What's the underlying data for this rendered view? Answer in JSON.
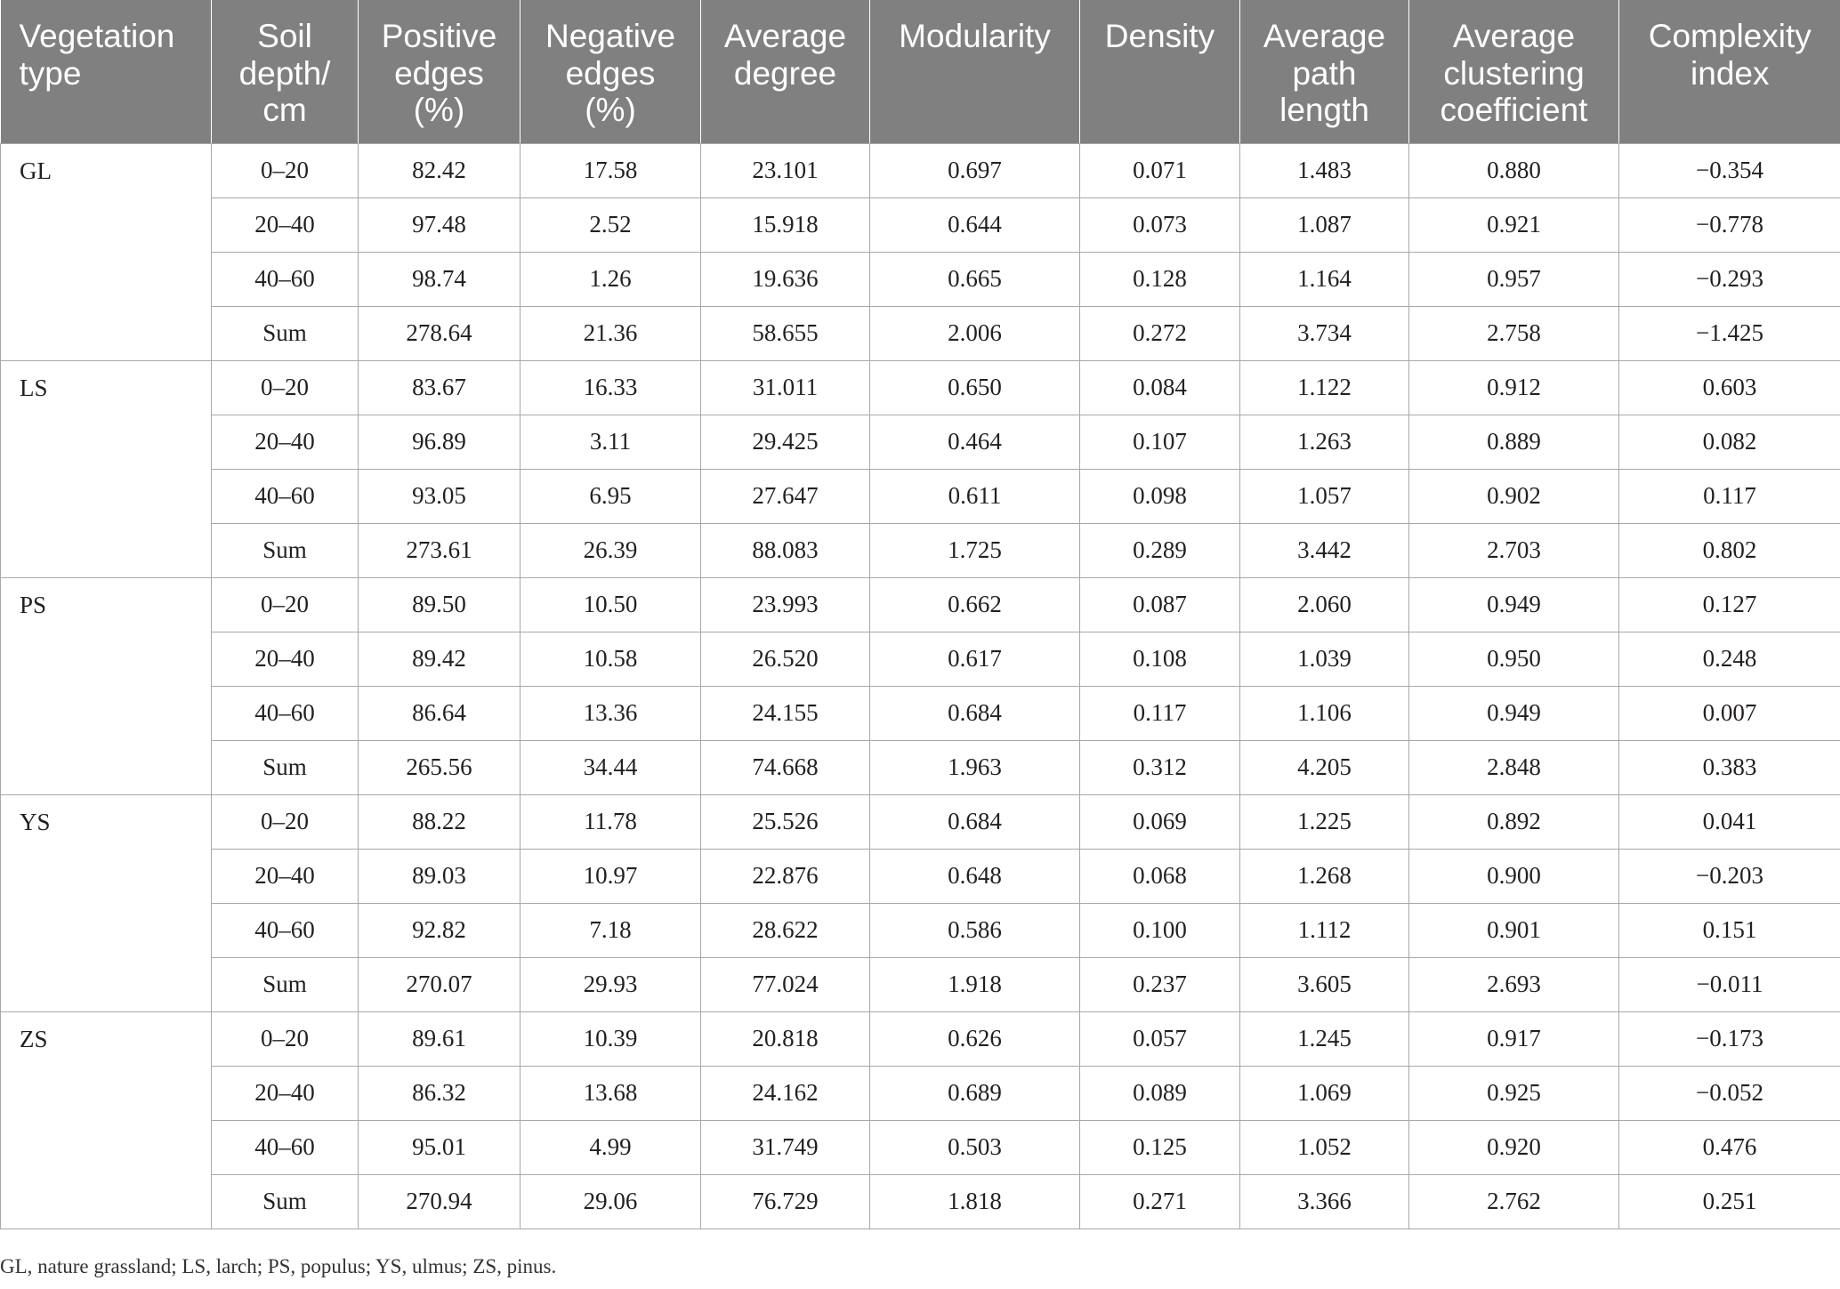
{
  "table": {
    "headers": [
      "Vegetation\ntype",
      "Soil\ndepth/\ncm",
      "Positive\nedges\n(%)",
      "Negative\nedges\n(%)",
      "Average\ndegree",
      "Modularity",
      "Density",
      "Average\npath\nlength",
      "Average\nclustering\ncoefficient",
      "Complexity\nindex"
    ],
    "groups": [
      {
        "type": "GL",
        "rows": [
          [
            "0–20",
            "82.42",
            "17.58",
            "23.101",
            "0.697",
            "0.071",
            "1.483",
            "0.880",
            "−0.354"
          ],
          [
            "20–40",
            "97.48",
            "2.52",
            "15.918",
            "0.644",
            "0.073",
            "1.087",
            "0.921",
            "−0.778"
          ],
          [
            "40–60",
            "98.74",
            "1.26",
            "19.636",
            "0.665",
            "0.128",
            "1.164",
            "0.957",
            "−0.293"
          ],
          [
            "Sum",
            "278.64",
            "21.36",
            "58.655",
            "2.006",
            "0.272",
            "3.734",
            "2.758",
            "−1.425"
          ]
        ]
      },
      {
        "type": "LS",
        "rows": [
          [
            "0–20",
            "83.67",
            "16.33",
            "31.011",
            "0.650",
            "0.084",
            "1.122",
            "0.912",
            "0.603"
          ],
          [
            "20–40",
            "96.89",
            "3.11",
            "29.425",
            "0.464",
            "0.107",
            "1.263",
            "0.889",
            "0.082"
          ],
          [
            "40–60",
            "93.05",
            "6.95",
            "27.647",
            "0.611",
            "0.098",
            "1.057",
            "0.902",
            "0.117"
          ],
          [
            "Sum",
            "273.61",
            "26.39",
            "88.083",
            "1.725",
            "0.289",
            "3.442",
            "2.703",
            "0.802"
          ]
        ]
      },
      {
        "type": "PS",
        "rows": [
          [
            "0–20",
            "89.50",
            "10.50",
            "23.993",
            "0.662",
            "0.087",
            "2.060",
            "0.949",
            "0.127"
          ],
          [
            "20–40",
            "89.42",
            "10.58",
            "26.520",
            "0.617",
            "0.108",
            "1.039",
            "0.950",
            "0.248"
          ],
          [
            "40–60",
            "86.64",
            "13.36",
            "24.155",
            "0.684",
            "0.117",
            "1.106",
            "0.949",
            "0.007"
          ],
          [
            "Sum",
            "265.56",
            "34.44",
            "74.668",
            "1.963",
            "0.312",
            "4.205",
            "2.848",
            "0.383"
          ]
        ]
      },
      {
        "type": "YS",
        "rows": [
          [
            "0–20",
            "88.22",
            "11.78",
            "25.526",
            "0.684",
            "0.069",
            "1.225",
            "0.892",
            "0.041"
          ],
          [
            "20–40",
            "89.03",
            "10.97",
            "22.876",
            "0.648",
            "0.068",
            "1.268",
            "0.900",
            "−0.203"
          ],
          [
            "40–60",
            "92.82",
            "7.18",
            "28.622",
            "0.586",
            "0.100",
            "1.112",
            "0.901",
            "0.151"
          ],
          [
            "Sum",
            "270.07",
            "29.93",
            "77.024",
            "1.918",
            "0.237",
            "3.605",
            "2.693",
            "−0.011"
          ]
        ]
      },
      {
        "type": "ZS",
        "rows": [
          [
            "0–20",
            "89.61",
            "10.39",
            "20.818",
            "0.626",
            "0.057",
            "1.245",
            "0.917",
            "−0.173"
          ],
          [
            "20–40",
            "86.32",
            "13.68",
            "24.162",
            "0.689",
            "0.089",
            "1.069",
            "0.925",
            "−0.052"
          ],
          [
            "40–60",
            "95.01",
            "4.99",
            "31.749",
            "0.503",
            "0.125",
            "1.052",
            "0.920",
            "0.476"
          ],
          [
            "Sum",
            "270.94",
            "29.06",
            "76.729",
            "1.818",
            "0.271",
            "3.366",
            "2.762",
            "0.251"
          ]
        ]
      }
    ]
  },
  "footnote": "GL, nature grassland; LS, larch; PS, populus; YS, ulmus; ZS, pinus.",
  "colors": {
    "header_background": "#808080",
    "header_text": "#ffffff",
    "grid_line": "#a8a8a8",
    "body_text": "#231f20"
  }
}
